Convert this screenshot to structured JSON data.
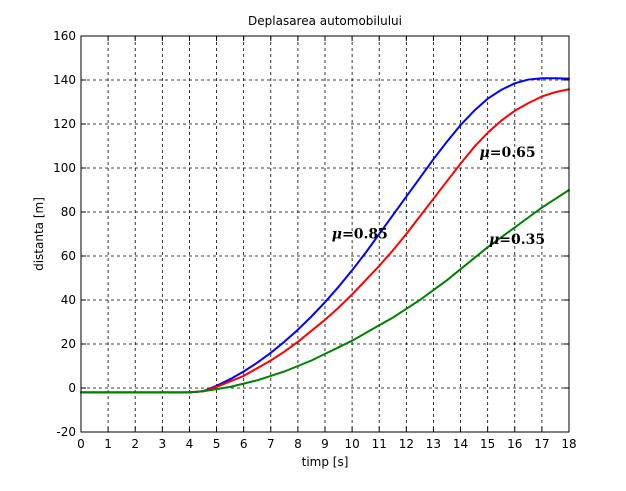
{
  "chart_data": {
    "type": "line",
    "title": "Deplasarea automobilului",
    "xlabel": "timp [s]",
    "ylabel": "distanta [m]",
    "xlim": [
      0,
      18
    ],
    "ylim": [
      -20,
      160
    ],
    "xticks": [
      "0",
      "1",
      "2",
      "3",
      "4",
      "5",
      "6",
      "7",
      "8",
      "9",
      "10",
      "11",
      "12",
      "13",
      "14",
      "15",
      "16",
      "17",
      "18"
    ],
    "yticks": [
      "-20",
      "0",
      "20",
      "40",
      "60",
      "80",
      "100",
      "120",
      "140",
      "160"
    ],
    "grid": true,
    "series": [
      {
        "name": "μ=0.85",
        "color": "#0000ff",
        "x": [
          0,
          1,
          2,
          3,
          4,
          4.5,
          5,
          5.5,
          6,
          6.5,
          7,
          7.5,
          8,
          8.5,
          9,
          9.5,
          10,
          10.5,
          11,
          11.5,
          12,
          12.5,
          13,
          13.5,
          14,
          14.5,
          15,
          15.5,
          16,
          16.5,
          17,
          17.5,
          18
        ],
        "y": [
          -2,
          -2,
          -2,
          -2,
          -2,
          -1.5,
          1,
          4,
          7.5,
          11.5,
          16,
          21,
          26.5,
          32.5,
          39,
          46,
          53.5,
          61.5,
          70,
          78.5,
          87,
          95.5,
          104,
          112,
          119.5,
          126,
          131.5,
          135.5,
          138.5,
          140.2,
          140.8,
          140.8,
          140.6
        ]
      },
      {
        "name": "μ=0.65",
        "color": "#ff0000",
        "x": [
          0,
          1,
          2,
          3,
          4,
          4.5,
          5,
          5.5,
          6,
          6.5,
          7,
          7.5,
          8,
          8.5,
          9,
          9.5,
          10,
          10.5,
          11,
          11.5,
          12,
          12.5,
          13,
          13.5,
          14,
          14.5,
          15,
          15.5,
          16,
          16.5,
          17,
          17.5,
          18
        ],
        "y": [
          -2,
          -2,
          -2,
          -2,
          -2,
          -1.5,
          0.5,
          3,
          5.5,
          9,
          12.5,
          16.5,
          21,
          26,
          31,
          36.5,
          42.5,
          49,
          55.5,
          62.5,
          70,
          78,
          86,
          94,
          102,
          109.5,
          116,
          121.5,
          126,
          129.5,
          132.5,
          134.5,
          135.8
        ]
      },
      {
        "name": "μ=0.35",
        "color": "#008000",
        "x": [
          0,
          1,
          2,
          3,
          4,
          4.5,
          5,
          5.5,
          6,
          6.5,
          7,
          7.5,
          8,
          8.5,
          9,
          9.5,
          10,
          10.5,
          11,
          11.5,
          12,
          12.5,
          13,
          13.5,
          14,
          14.5,
          15,
          15.5,
          16,
          16.5,
          17,
          17.5,
          18
        ],
        "y": [
          -2,
          -2,
          -2,
          -2,
          -2,
          -1.5,
          -0.5,
          0.5,
          2,
          3.5,
          5.5,
          7.5,
          10,
          12.5,
          15.5,
          18.5,
          21.5,
          25,
          28.5,
          32,
          36,
          40,
          44.5,
          49,
          54,
          59,
          64,
          68.5,
          73,
          77.5,
          82,
          86,
          90
        ]
      }
    ],
    "annotations": [
      {
        "prefix": "μ",
        "text": "=0.85",
        "x": 9.25,
        "y": 68
      },
      {
        "prefix": "μ",
        "text": "=0.65",
        "x": 14.7,
        "y": 105
      },
      {
        "prefix": "μ",
        "text": "=0.35",
        "x": 15.05,
        "y": 65.5
      }
    ]
  }
}
